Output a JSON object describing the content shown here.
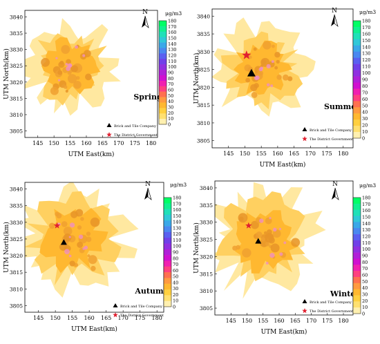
{
  "unit": "μg/m3",
  "colorbar": {
    "ticks": [
      "180",
      "170",
      "160",
      "150",
      "140",
      "130",
      "120",
      "110",
      "100",
      "90",
      "80",
      "70",
      "60",
      "50",
      "40",
      "30",
      "20",
      "10",
      "0"
    ],
    "colors": [
      "#00ff66",
      "#10f090",
      "#20e0b8",
      "#30c8d8",
      "#3aa8e8",
      "#4a88f0",
      "#5a60f0",
      "#7040e8",
      "#9030e0",
      "#b020d8",
      "#d010d0",
      "#f020b0",
      "#ff4080",
      "#ff7050",
      "#ff9a40",
      "#ffb830",
      "#ffd040",
      "#ffe070",
      "#fff0b0"
    ]
  },
  "icons": {
    "north": "north-arrow-icon",
    "brick": "black-triangle-icon",
    "government": "red-star-icon"
  },
  "marker_colors": {
    "brick": "#000000",
    "government": "#e02030"
  },
  "panels": [
    {
      "season": "Spring",
      "xlabel": "UTM East(km)",
      "ylabel": "UTM North(km)",
      "north_label": "N",
      "x_ticks": [
        "145",
        "150",
        "155",
        "160",
        "165",
        "170",
        "175",
        "180"
      ],
      "y_ticks": [
        "3840",
        "3835",
        "3830",
        "3825",
        "3820",
        "3815",
        "3810",
        "3805"
      ],
      "legend": {
        "brick": "Brick and Tile Company",
        "government": "The District Government"
      }
    },
    {
      "season": "Summer",
      "xlabel": "UTM East(km)",
      "ylabel": "UTM North(km)",
      "north_label": "N",
      "x_ticks": [
        "145",
        "150",
        "155",
        "160",
        "165",
        "170",
        "175",
        "180"
      ],
      "y_ticks": [
        "3840",
        "3835",
        "3830",
        "3825",
        "3820",
        "3815",
        "3810",
        "3805"
      ],
      "legend": {
        "brick": "Brick and Tile Company",
        "government": "The District Government"
      }
    },
    {
      "season": "Autumn",
      "xlabel": "UTM East(km)",
      "ylabel": "UTM North(km)",
      "north_label": "N",
      "x_ticks": [
        "145",
        "150",
        "155",
        "160",
        "165",
        "170",
        "175",
        "180"
      ],
      "y_ticks": [
        "3840",
        "3835",
        "3830",
        "3825",
        "3820",
        "3815",
        "3810",
        "3805"
      ],
      "legend": {
        "brick": "Brick and Tile Company",
        "government": "The District Government"
      }
    },
    {
      "season": "Winter",
      "xlabel": "UTM East(km)",
      "ylabel": "UTM North(km)",
      "north_label": "N",
      "x_ticks": [
        "145",
        "150",
        "155",
        "160",
        "165",
        "170",
        "175",
        "180"
      ],
      "y_ticks": [
        "3840",
        "3835",
        "3830",
        "3825",
        "3820",
        "3815",
        "3810",
        "3805"
      ],
      "legend": {
        "brick": "Brick and Tile Company",
        "government": "The District Government"
      }
    }
  ]
}
